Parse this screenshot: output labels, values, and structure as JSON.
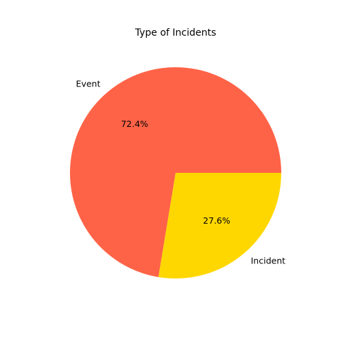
{
  "chart_data": {
    "type": "pie",
    "title": "Type of Incidents",
    "categories": [
      "Event",
      "Incident"
    ],
    "values": [
      72.4,
      27.6
    ],
    "percent_labels": [
      "72.4%",
      "27.6%"
    ],
    "colors": [
      "#ff6347",
      "#ffd700"
    ],
    "start_angle_deg": 0,
    "direction": "counterclockwise"
  }
}
